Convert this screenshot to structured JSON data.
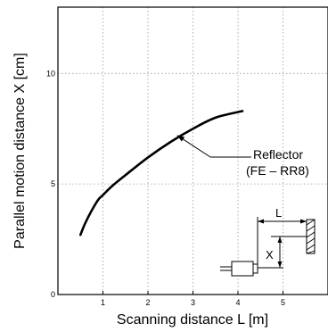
{
  "chart_data": {
    "type": "line",
    "xlabel": "Scanning distance L [m]",
    "ylabel": "Parallel motion distance X [cm]",
    "xlim": [
      0,
      6
    ],
    "ylim": [
      0,
      13
    ],
    "x_ticks": [
      1,
      2,
      3,
      4,
      5
    ],
    "x_tick_labels": [
      "1",
      "2",
      "3",
      "4",
      "5"
    ],
    "y_ticks": [
      0,
      5,
      10
    ],
    "y_tick_labels": [
      "0",
      "5",
      "10"
    ],
    "grid": true,
    "series": [
      {
        "name": "Reflector (FE – RR8)",
        "x": [
          0.5,
          0.6,
          0.75,
          0.9,
          1.0,
          1.2,
          1.5,
          2.0,
          2.5,
          3.0,
          3.5,
          4.1
        ],
        "y": [
          2.7,
          3.2,
          3.8,
          4.3,
          4.5,
          4.9,
          5.4,
          6.2,
          6.9,
          7.5,
          8.0,
          8.3
        ]
      }
    ],
    "annotation": {
      "line1": "Reflector",
      "line2": "(FE – RR8)",
      "arrow_to": [
        2.65,
        7.2
      ]
    },
    "inset_labels": {
      "distance": "L",
      "offset": "X"
    }
  }
}
